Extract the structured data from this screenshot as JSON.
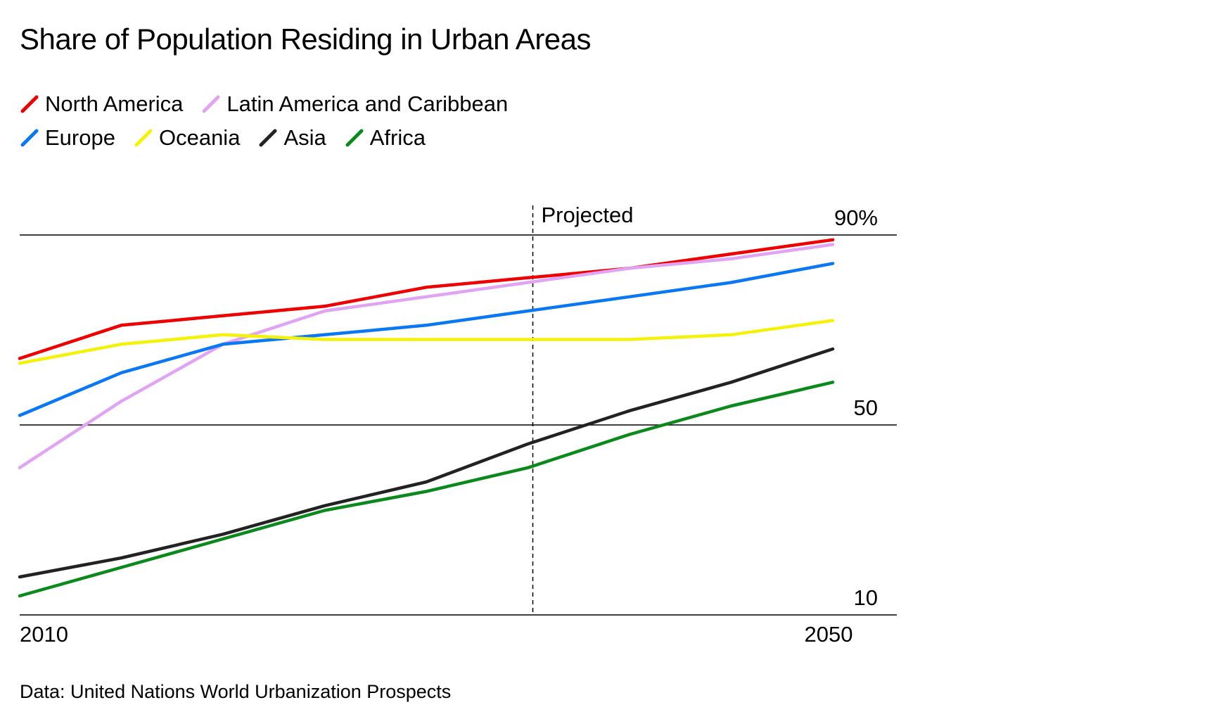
{
  "chart_data": {
    "type": "line",
    "title": "Share of Population Residing in Urban Areas",
    "source": "Data: United Nations World Urbanization Prospects",
    "projection_label": "Projected",
    "projection_start": 2035,
    "x": [
      2010,
      2015,
      2020,
      2025,
      2030,
      2035,
      2040,
      2045,
      2050
    ],
    "x_tick_labels": [
      {
        "value": 2010,
        "label": "2010"
      },
      {
        "value": 2050,
        "label": "2050"
      }
    ],
    "y_tick_labels": [
      {
        "value": 90,
        "label": "90%"
      },
      {
        "value": 50,
        "label": "50"
      },
      {
        "value": 10,
        "label": "10"
      }
    ],
    "ylim": [
      10,
      90
    ],
    "xlim": [
      2010,
      2053
    ],
    "grid": "horizontal at 90, 50, 10",
    "legend_position": "top-left",
    "series": [
      {
        "name": "North America",
        "color": "#ee0000",
        "values": [
          64,
          71,
          73,
          75,
          79,
          81,
          83,
          86,
          89
        ]
      },
      {
        "name": "Latin America and Caribbean",
        "color": "#e1a4f4",
        "values": [
          41,
          55,
          67,
          74,
          77,
          80,
          83,
          85,
          88
        ]
      },
      {
        "name": "Europe",
        "color": "#0a77f5",
        "values": [
          52,
          61,
          67,
          69,
          71,
          74,
          77,
          80,
          84
        ]
      },
      {
        "name": "Oceania",
        "color": "#f5f20a",
        "values": [
          63,
          67,
          69,
          68,
          68,
          68,
          68,
          69,
          72
        ]
      },
      {
        "name": "Asia",
        "color": "#222222",
        "values": [
          18,
          22,
          27,
          33,
          38,
          46,
          53,
          59,
          66
        ]
      },
      {
        "name": "Africa",
        "color": "#0a8a1a",
        "values": [
          14,
          20,
          26,
          32,
          36,
          41,
          48,
          54,
          59
        ]
      }
    ]
  }
}
